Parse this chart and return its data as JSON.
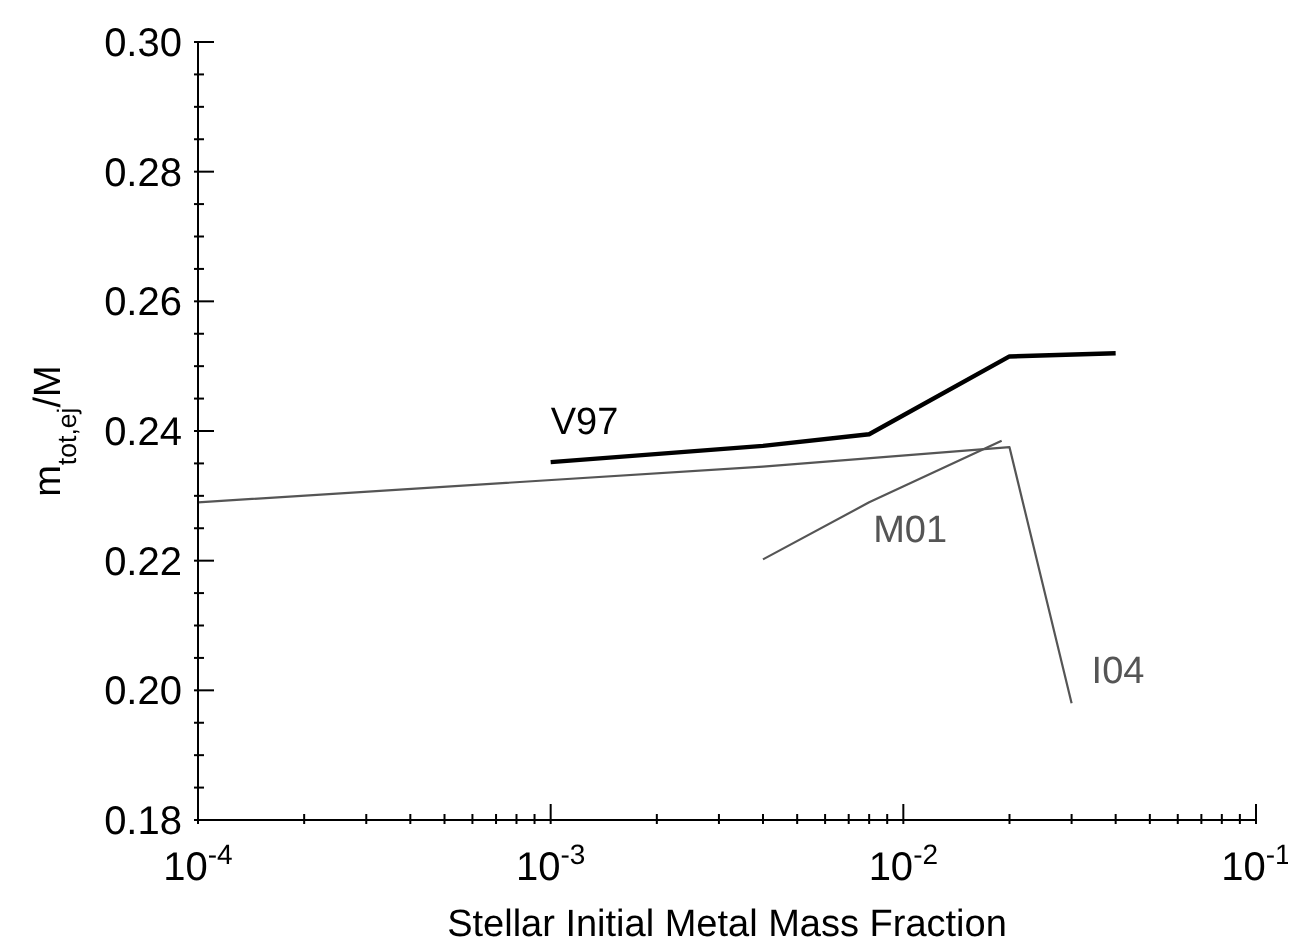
{
  "chart_data": {
    "type": "line",
    "xlabel": "Stellar Initial Metal Mass Fraction",
    "ylabel": "m$_{tot,ej}$/M",
    "log": "x",
    "xlim": [
      0.0001,
      0.1
    ],
    "ylim": [
      0.18,
      0.3
    ],
    "xticks": [
      {
        "value": 0.0001,
        "label": "10$^{-4}$"
      },
      {
        "value": 0.0002,
        "label": null
      },
      {
        "value": 0.0003,
        "label": null
      },
      {
        "value": 0.0004,
        "label": null
      },
      {
        "value": 0.0005,
        "label": null
      },
      {
        "value": 0.0006,
        "label": null
      },
      {
        "value": 0.0007,
        "label": null
      },
      {
        "value": 0.0008,
        "label": null
      },
      {
        "value": 0.0009,
        "label": null
      },
      {
        "value": 0.001,
        "label": "10$^{-3}$"
      },
      {
        "value": 0.002,
        "label": null
      },
      {
        "value": 0.003,
        "label": null
      },
      {
        "value": 0.004,
        "label": null
      },
      {
        "value": 0.005,
        "label": null
      },
      {
        "value": 0.006,
        "label": null
      },
      {
        "value": 0.007,
        "label": null
      },
      {
        "value": 0.008,
        "label": null
      },
      {
        "value": 0.009,
        "label": null
      },
      {
        "value": 0.01,
        "label": "10$^{-2}$"
      },
      {
        "value": 0.02,
        "label": null
      },
      {
        "value": 0.03,
        "label": null
      },
      {
        "value": 0.04,
        "label": null
      },
      {
        "value": 0.05,
        "label": null
      },
      {
        "value": 0.06,
        "label": null
      },
      {
        "value": 0.07,
        "label": null
      },
      {
        "value": 0.08,
        "label": null
      },
      {
        "value": 0.09,
        "label": null
      },
      {
        "value": 0.1,
        "label": "10$^{-1}$"
      }
    ],
    "yticks": [
      {
        "value": 0.18,
        "label": "0.18"
      },
      {
        "value": 0.185,
        "label": null
      },
      {
        "value": 0.19,
        "label": null
      },
      {
        "value": 0.195,
        "label": null
      },
      {
        "value": 0.2,
        "label": "0.20"
      },
      {
        "value": 0.205,
        "label": null
      },
      {
        "value": 0.21,
        "label": null
      },
      {
        "value": 0.215,
        "label": null
      },
      {
        "value": 0.22,
        "label": "0.22"
      },
      {
        "value": 0.225,
        "label": null
      },
      {
        "value": 0.23,
        "label": null
      },
      {
        "value": 0.235,
        "label": null
      },
      {
        "value": 0.24,
        "label": "0.24"
      },
      {
        "value": 0.245,
        "label": null
      },
      {
        "value": 0.25,
        "label": null
      },
      {
        "value": 0.255,
        "label": null
      },
      {
        "value": 0.26,
        "label": "0.26"
      },
      {
        "value": 0.265,
        "label": null
      },
      {
        "value": 0.27,
        "label": null
      },
      {
        "value": 0.275,
        "label": null
      },
      {
        "value": 0.28,
        "label": "0.28"
      },
      {
        "value": 0.285,
        "label": null
      },
      {
        "value": 0.29,
        "label": null
      },
      {
        "value": 0.295,
        "label": null
      },
      {
        "value": 0.3,
        "label": "0.30"
      }
    ],
    "marker": "none",
    "line_style": "solid",
    "series": [
      {
        "name": "V97",
        "color": "#000000",
        "x": [
          0.001,
          0.004,
          0.008,
          0.02,
          0.04
        ],
        "values": [
          0.2352,
          0.2377,
          0.2395,
          0.2515,
          0.252
        ]
      },
      {
        "name": "I04",
        "color": "#555555",
        "x": [
          0.0001,
          0.004,
          0.02,
          0.03
        ],
        "values": [
          0.229,
          0.2345,
          0.2375,
          0.198
        ]
      },
      {
        "name": "M01",
        "color": "#555555",
        "x": [
          0.004,
          0.008,
          0.019
        ],
        "values": [
          0.2202,
          0.229,
          0.2385
        ]
      }
    ]
  }
}
